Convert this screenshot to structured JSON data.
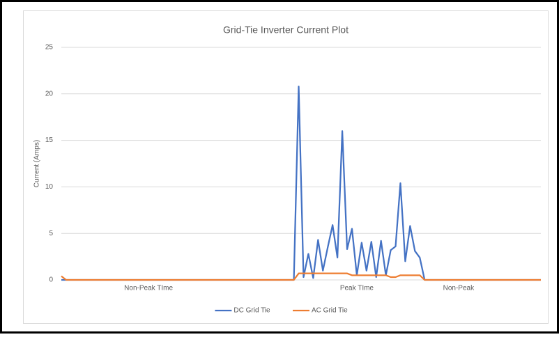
{
  "chart_data": {
    "type": "line",
    "title": "Grid-Tie Inverter Current Plot",
    "y_label": "Current (Amps)",
    "categories": [
      null,
      null,
      null,
      null,
      null,
      null,
      null,
      null,
      null,
      null,
      null,
      null,
      null,
      null,
      null,
      null,
      null,
      null,
      "Non-Peak TIme",
      null,
      null,
      null,
      null,
      null,
      null,
      null,
      null,
      null,
      null,
      null,
      null,
      null,
      null,
      null,
      null,
      null,
      null,
      null,
      null,
      null,
      null,
      null,
      null,
      null,
      null,
      null,
      null,
      null,
      null,
      null,
      null,
      null,
      null,
      null,
      null,
      null,
      null,
      null,
      null,
      null,
      null,
      "Peak TIme",
      null,
      null,
      null,
      null,
      null,
      null,
      null,
      null,
      null,
      null,
      null,
      null,
      null,
      null,
      null,
      null,
      null,
      null,
      null,
      null,
      "Non-Peak",
      null,
      null,
      null,
      null,
      null,
      null,
      null,
      null,
      null,
      null,
      null,
      null,
      null,
      null,
      null,
      null,
      null
    ],
    "series": [
      {
        "name": "DC Grid Tie",
        "color": "#4472c4",
        "values": [
          0,
          0,
          0,
          0,
          0,
          0,
          0,
          0,
          0,
          0,
          0,
          0,
          0,
          0,
          0,
          0,
          0,
          0,
          0,
          0,
          0,
          0,
          0,
          0,
          0,
          0,
          0,
          0,
          0,
          0,
          0,
          0,
          0,
          0,
          0,
          0,
          0,
          0,
          0,
          0,
          0,
          0,
          0,
          0,
          0,
          0,
          0,
          0,
          0,
          20.8,
          0.3,
          2.8,
          0.2,
          4.3,
          1,
          3.5,
          5.9,
          2.4,
          16,
          3.3,
          5.5,
          0.5,
          4,
          1,
          4.1,
          0.3,
          4.2,
          0.5,
          3.2,
          3.6,
          10.4,
          2,
          5.8,
          3.1,
          2.4,
          0,
          0,
          0,
          0,
          0,
          0,
          0,
          0,
          0,
          0,
          0,
          0,
          0,
          0,
          0,
          0,
          0,
          0,
          0,
          0,
          0,
          0,
          0,
          0,
          0
        ]
      },
      {
        "name": "AC Grid Tie",
        "color": "#ed7d31",
        "values": [
          0.4,
          0,
          0,
          0,
          0,
          0,
          0,
          0,
          0,
          0,
          0,
          0,
          0,
          0,
          0,
          0,
          0,
          0,
          0,
          0,
          0,
          0,
          0,
          0,
          0,
          0,
          0,
          0,
          0,
          0,
          0,
          0,
          0,
          0,
          0,
          0,
          0,
          0,
          0,
          0,
          0,
          0,
          0,
          0,
          0,
          0,
          0,
          0,
          0,
          0.7,
          0.7,
          0.7,
          0.7,
          0.7,
          0.7,
          0.7,
          0.7,
          0.7,
          0.7,
          0.7,
          0.5,
          0.5,
          0.5,
          0.5,
          0.5,
          0.5,
          0.5,
          0.5,
          0.3,
          0.3,
          0.5,
          0.5,
          0.5,
          0.5,
          0.5,
          0,
          0,
          0,
          0,
          0,
          0,
          0,
          0,
          0,
          0,
          0,
          0,
          0,
          0,
          0,
          0,
          0,
          0,
          0,
          0,
          0,
          0,
          0,
          0,
          0
        ]
      }
    ],
    "ylim": [
      0,
      25
    ],
    "yticks": [
      0,
      5,
      10,
      15,
      20,
      25
    ],
    "grid": true,
    "legend": "bottom"
  }
}
